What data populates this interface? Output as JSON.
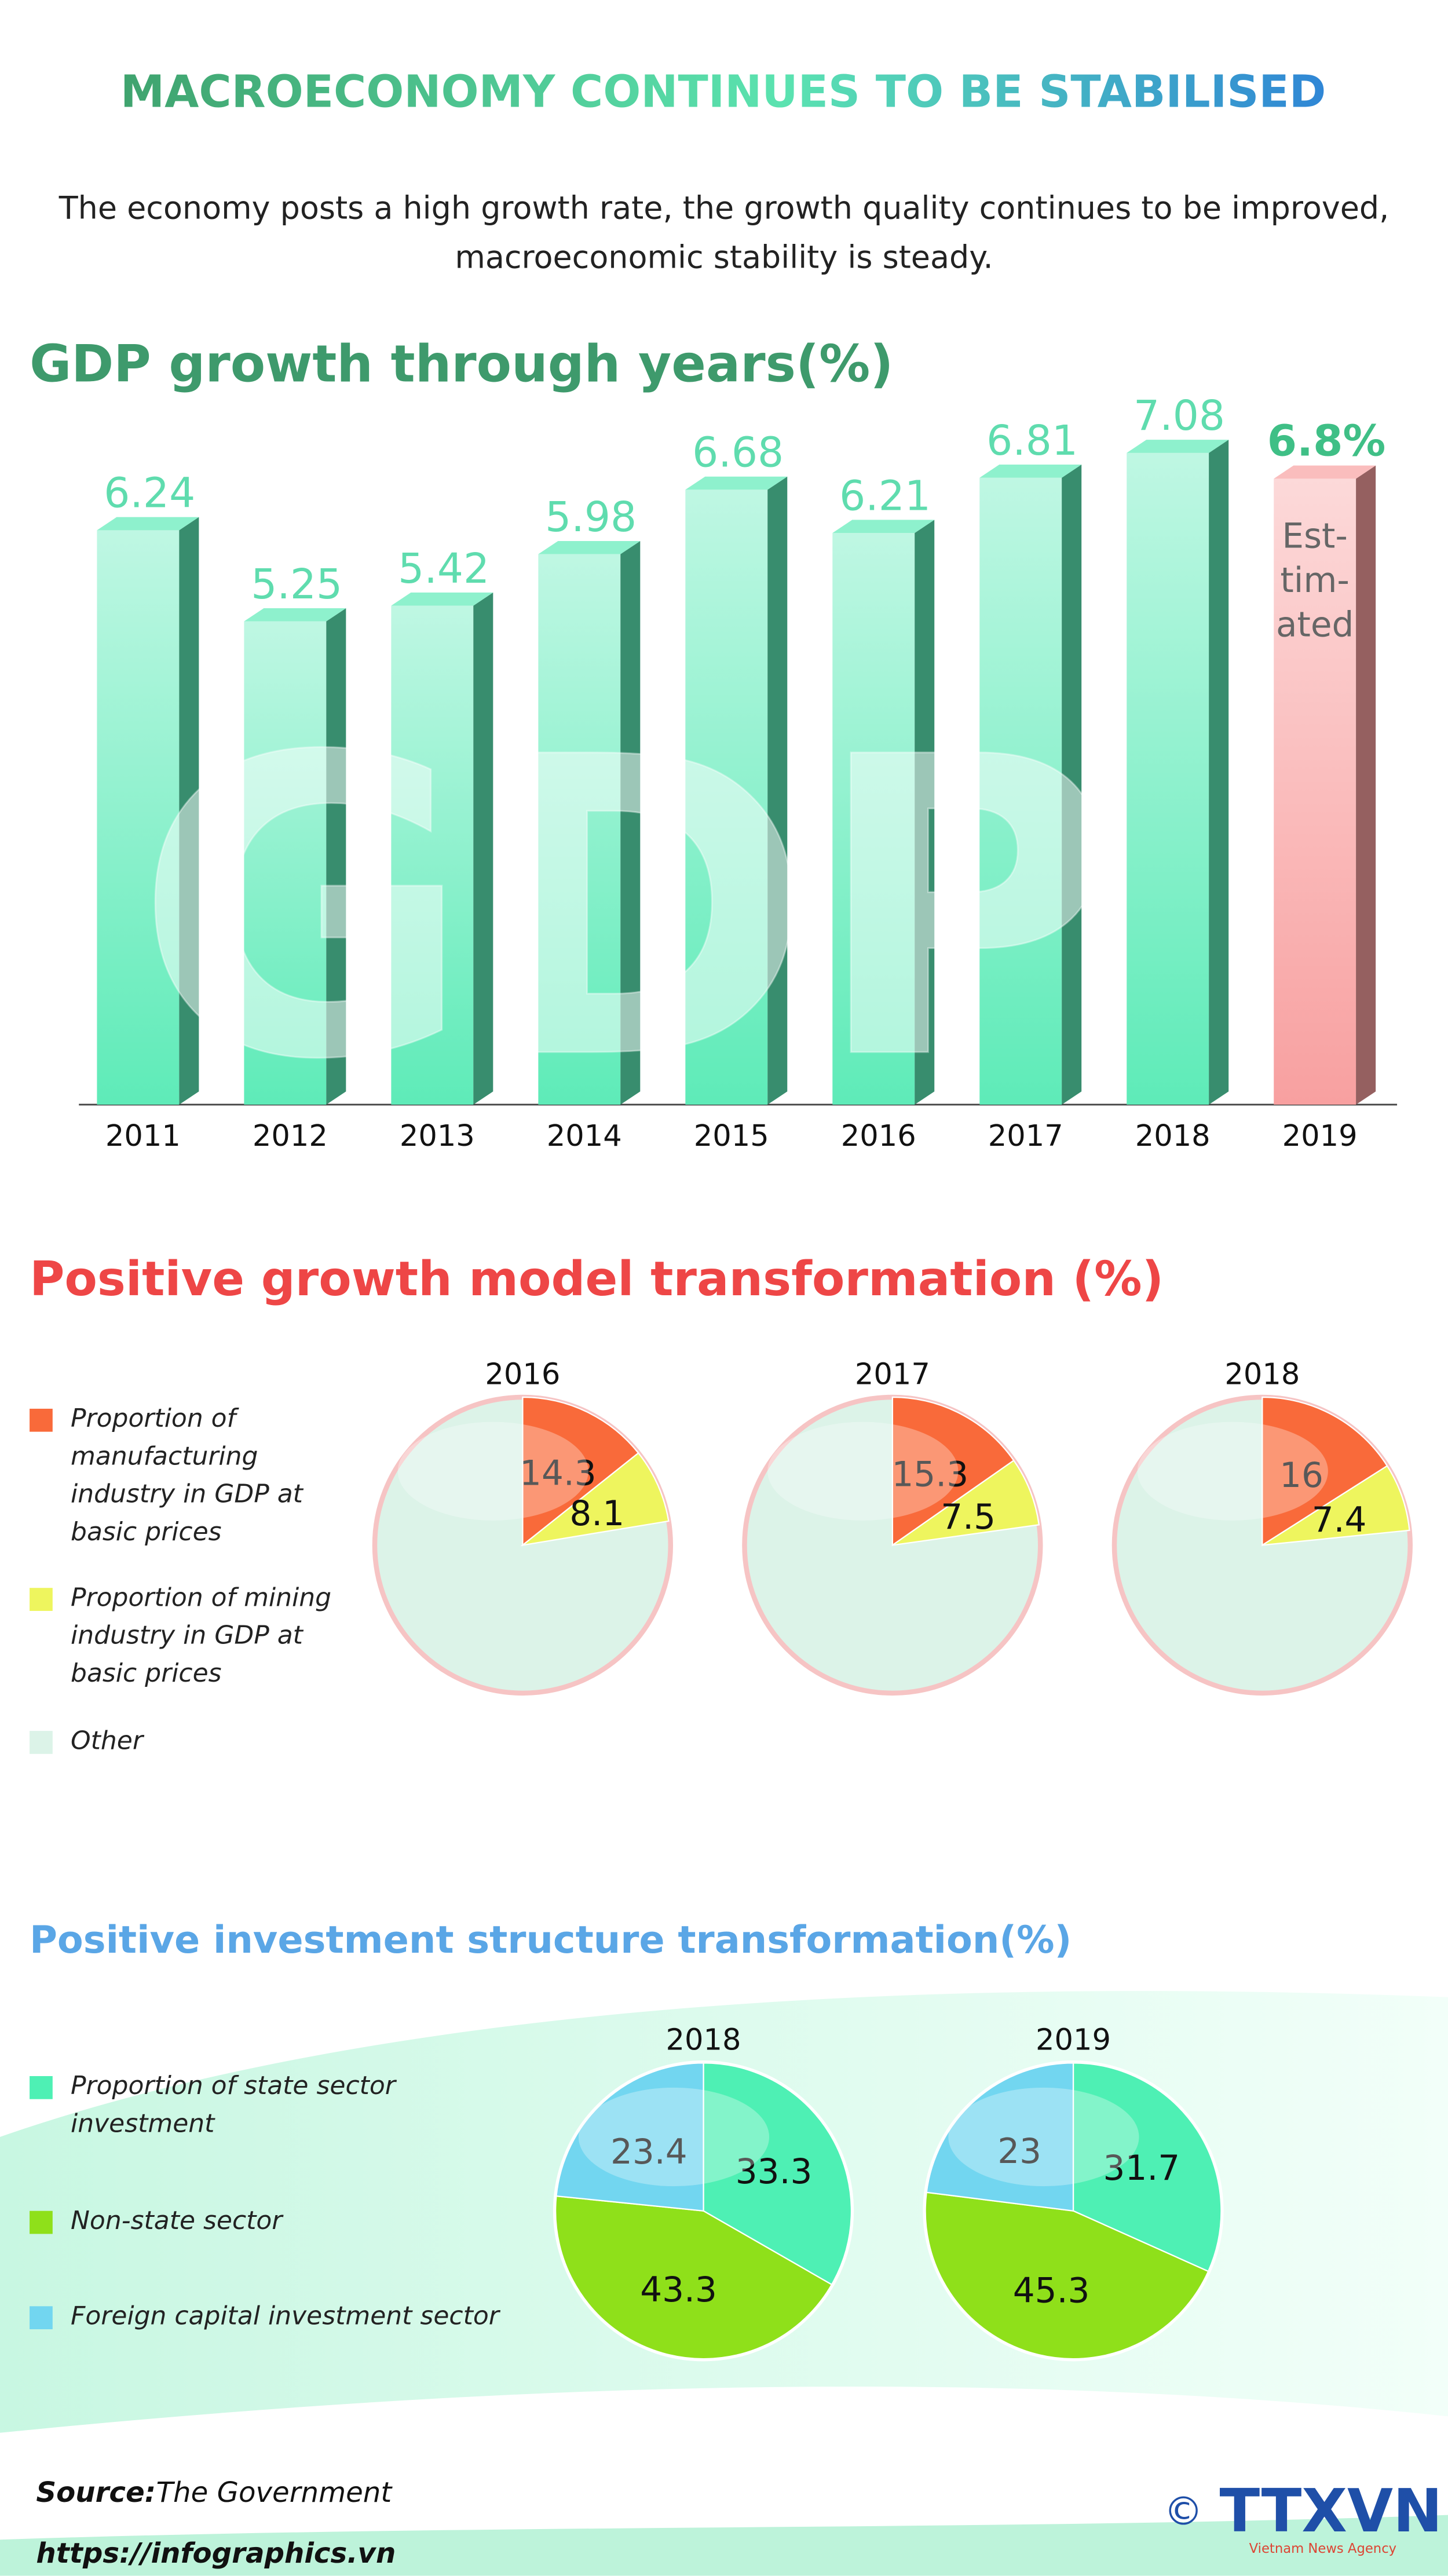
{
  "header": {
    "title": "MACROECONOMY CONTINUES TO BE STABILISED",
    "subtitle": "The economy posts a high growth rate, the growth quality continues to be improved, macroeconomic stability is steady."
  },
  "sections": [
    {
      "title": "Positive growth model transformation (%)",
      "legend": [
        {
          "name": "Proportion of manufacturing industry in GDP at basic prices",
          "color": "#f96a3a"
        },
        {
          "name": "Proportion of mining industry in GDP at basic prices",
          "color": "#eef55e"
        },
        {
          "name": "Other",
          "color": "#dcf3e8"
        }
      ]
    },
    {
      "title": "Positive investment structure transformation(%)",
      "legend": [
        {
          "name": "Proportion of state sector investment",
          "color": "#4ef0b4"
        },
        {
          "name": "Non-state sector",
          "color": "#8fe01a"
        },
        {
          "name": "Foreign capital investment sector",
          "color": "#72d6f0"
        }
      ]
    }
  ],
  "chart_data": [
    {
      "type": "bar",
      "title": "GDP growth through years(%)",
      "watermark": "GDP",
      "categories": [
        "2011",
        "2012",
        "2013",
        "2014",
        "2015",
        "2016",
        "2017",
        "2018",
        "2019"
      ],
      "values": [
        6.24,
        5.25,
        5.42,
        5.98,
        6.68,
        6.21,
        6.81,
        7.08,
        6.8
      ],
      "value_labels": [
        "6.24",
        "5.25",
        "5.42",
        "5.98",
        "6.68",
        "6.21",
        "6.81",
        "7.08",
        "6.8%"
      ],
      "colors": [
        "#5eebb8",
        "#5eebb8",
        "#5eebb8",
        "#5eebb8",
        "#5eebb8",
        "#5eebb8",
        "#5eebb8",
        "#5eebb8",
        "#f8a0a0"
      ],
      "annotation": [
        "Est-",
        "tim-",
        "ated"
      ],
      "ylim": [
        0,
        7.5
      ]
    },
    {
      "type": "pie",
      "section": 0,
      "title": "2016",
      "values": [
        14.3,
        8.1
      ]
    },
    {
      "type": "pie",
      "section": 0,
      "title": "2017",
      "values": [
        15.3,
        7.5
      ]
    },
    {
      "type": "pie",
      "section": 0,
      "title": "2018",
      "values": [
        16,
        7.4
      ]
    },
    {
      "type": "pie",
      "section": 1,
      "title": "2018",
      "values": [
        33.3,
        43.3,
        23.4
      ]
    },
    {
      "type": "pie",
      "section": 1,
      "title": "2019",
      "values": [
        31.7,
        45.3,
        23
      ]
    }
  ],
  "footer": {
    "source_label": "Source:",
    "source": "The Government",
    "url": "https://infographics.vn",
    "copyright": "©",
    "logo": "TTXVN",
    "agency": "Vietnam News Agency"
  }
}
